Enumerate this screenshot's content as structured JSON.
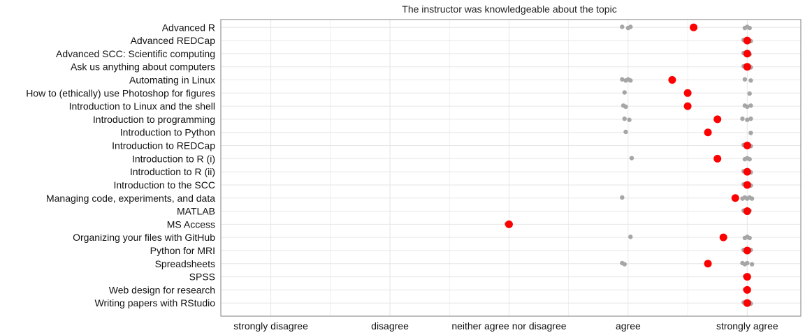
{
  "chart_data": {
    "type": "scatter",
    "title": "The instructor was knowledgeable about the topic",
    "x_categories": [
      "strongly disagree",
      "disagree",
      "neither agree nor disagree",
      "agree",
      "strongly agree"
    ],
    "xlim": [
      0.58,
      5.45
    ],
    "grid": true,
    "courses": [
      {
        "name": "Advanced R",
        "mean": 4.55,
        "responses": [
          3.95,
          4.0,
          4.02,
          4.98,
          5.0,
          5.02
        ]
      },
      {
        "name": "Advanced REDCap",
        "mean": 5.0,
        "responses": [
          4.97,
          4.99,
          5.01,
          5.03
        ]
      },
      {
        "name": "Advanced SCC: Scientific computing",
        "mean": 5.0,
        "responses": [
          4.97,
          4.99,
          5.0,
          5.02
        ]
      },
      {
        "name": "Ask us anything about computers",
        "mean": 5.0,
        "responses": [
          4.97,
          4.99,
          5.01,
          5.03
        ]
      },
      {
        "name": "Automating in Linux",
        "mean": 4.37,
        "responses": [
          3.95,
          3.98,
          4.0,
          4.02,
          4.98,
          5.03
        ]
      },
      {
        "name": "How to (ethically) use Photoshop for figures",
        "mean": 4.5,
        "responses": [
          3.97,
          5.02
        ]
      },
      {
        "name": "Introduction to Linux and the shell",
        "mean": 4.5,
        "responses": [
          3.96,
          3.98,
          4.98,
          5.0,
          5.03
        ]
      },
      {
        "name": "Introduction to programming",
        "mean": 4.75,
        "responses": [
          3.97,
          4.01,
          4.96,
          5.0,
          5.03
        ]
      },
      {
        "name": "Introduction to Python",
        "mean": 4.67,
        "responses": [
          3.98,
          5.03
        ]
      },
      {
        "name": "Introduction to REDCap",
        "mean": 5.0,
        "responses": [
          4.97,
          4.99,
          5.01,
          5.03
        ]
      },
      {
        "name": "Introduction to R (i)",
        "mean": 4.75,
        "responses": [
          4.03,
          4.98,
          5.0,
          5.02
        ]
      },
      {
        "name": "Introduction to R (ii)",
        "mean": 5.0,
        "responses": [
          4.97,
          4.99,
          5.01,
          5.03
        ]
      },
      {
        "name": "Introduction to the SCC",
        "mean": 5.0,
        "responses": [
          4.97,
          4.99,
          5.01,
          5.03
        ]
      },
      {
        "name": "Managing code, experiments, and data",
        "mean": 4.9,
        "responses": [
          3.95,
          4.96,
          4.98,
          5.0,
          5.02,
          5.04
        ]
      },
      {
        "name": "MATLAB",
        "mean": 5.0,
        "responses": [
          4.97,
          5.0,
          5.02
        ]
      },
      {
        "name": "MS Access",
        "mean": 3.0,
        "responses": [
          2.98,
          3.01
        ]
      },
      {
        "name": "Organizing your files with GitHub",
        "mean": 4.8,
        "responses": [
          4.02,
          4.98,
          5.0,
          5.02
        ]
      },
      {
        "name": "Python for MRI",
        "mean": 5.0,
        "responses": [
          4.97,
          5.01,
          5.03
        ]
      },
      {
        "name": "Spreadsheets",
        "mean": 4.67,
        "responses": [
          3.95,
          3.97,
          4.96,
          4.98,
          5.0,
          5.04
        ]
      },
      {
        "name": "SPSS",
        "mean": 5.0,
        "responses": [
          4.98,
          5.01
        ]
      },
      {
        "name": "Web design for research",
        "mean": 5.0,
        "responses": [
          4.98,
          5.01
        ]
      },
      {
        "name": "Writing papers with RStudio",
        "mean": 5.0,
        "responses": [
          4.97,
          4.99,
          5.02,
          5.03
        ]
      }
    ],
    "colors": {
      "mean": "#ff0000",
      "response": "#a6a6a6",
      "grid": "#e6e6e6",
      "panel_border": "#7f7f7f"
    }
  }
}
